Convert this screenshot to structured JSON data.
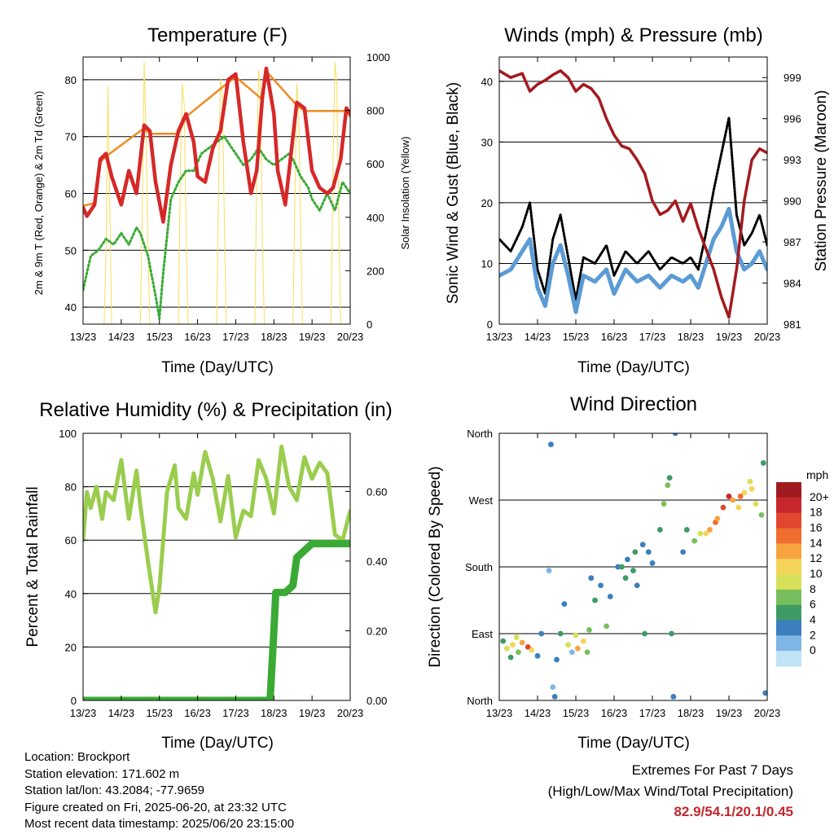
{
  "time_ticks": [
    "13/23",
    "14/23",
    "15/23",
    "16/23",
    "17/23",
    "18/23",
    "19/23",
    "20/23"
  ],
  "xlabel": "Time (Day/UTC)",
  "colors": {
    "temp_2m": "#d62828",
    "temp_9m": "#f08a24",
    "dewpoint": "#3aaa35",
    "solar": "#f7dd5b",
    "wind": "#5b9bd5",
    "gust": "#000000",
    "pressure": "#a31a1e",
    "rh": "#9acd4e",
    "precip": "#3aaa35"
  },
  "chart_data": [
    {
      "id": "temperature",
      "type": "line",
      "title": "Temperature (F)",
      "xlabel": "Time (Day/UTC)",
      "ylabel": "2m & 9m T (Red, Orange) & 2m Td (Green)",
      "y2label": "Solar Insolation (Yellow)",
      "ylim": [
        37,
        84
      ],
      "y2lim": [
        0,
        1000
      ],
      "yticks": [
        40,
        50,
        60,
        70,
        80
      ],
      "y2ticks": [
        0,
        200,
        400,
        600,
        800,
        1000
      ],
      "grid": true,
      "series": [
        {
          "key": "temp_2m",
          "axis": "y",
          "x": [
            0,
            0.1,
            0.3,
            0.45,
            0.6,
            0.75,
            1.0,
            1.2,
            1.4,
            1.6,
            1.75,
            1.9,
            2.1,
            2.3,
            2.5,
            2.7,
            2.9,
            3.0,
            3.2,
            3.4,
            3.6,
            3.8,
            4.0,
            4.2,
            4.4,
            4.55,
            4.7,
            4.8,
            5.0,
            5.1,
            5.3,
            5.5,
            5.6,
            5.8,
            6.0,
            6.2,
            6.4,
            6.55,
            6.75,
            6.9,
            7.0
          ],
          "y": [
            57.5,
            56,
            58,
            66,
            67,
            63,
            58,
            64,
            60,
            72,
            71,
            62,
            55,
            65,
            71,
            74,
            69,
            63,
            62,
            68,
            71,
            80,
            81,
            69,
            60,
            64,
            77,
            82,
            74,
            64,
            58,
            70,
            76,
            75,
            64,
            61,
            60,
            61,
            66,
            75,
            74
          ]
        },
        {
          "key": "temp_9m",
          "axis": "y",
          "x": [
            0,
            0.3,
            0.45,
            0.6,
            1.6,
            1.75,
            2.5,
            2.7,
            3.8,
            4.0,
            4.7,
            4.8,
            5.6,
            5.8,
            6.9,
            7.0
          ],
          "y": [
            57.8,
            58.3,
            65.5,
            66.5,
            71.5,
            70.5,
            70.5,
            73.5,
            79.5,
            80.5,
            76.5,
            81.5,
            75.5,
            74.5,
            74.5,
            73.5
          ]
        },
        {
          "key": "dewpoint",
          "axis": "y",
          "x": [
            0,
            0.2,
            0.4,
            0.6,
            0.8,
            1.0,
            1.2,
            1.4,
            1.5,
            1.7,
            1.9,
            2.0,
            2.1,
            2.3,
            2.5,
            2.7,
            2.9,
            3.1,
            3.3,
            3.5,
            3.7,
            3.9,
            4.0,
            4.2,
            4.4,
            4.6,
            4.8,
            5.0,
            5.2,
            5.4,
            5.5,
            5.7,
            5.9,
            6.0,
            6.2,
            6.4,
            6.6,
            6.8,
            7.0
          ],
          "y": [
            43,
            49,
            50,
            52,
            51,
            53,
            51,
            54,
            53,
            49,
            42,
            38,
            46,
            59,
            62,
            64,
            64,
            67,
            68,
            69,
            70,
            68,
            67,
            65,
            66,
            68,
            66,
            65,
            66,
            67,
            66,
            63,
            61,
            59,
            57,
            60,
            57,
            62,
            60
          ]
        },
        {
          "key": "solar",
          "axis": "y2",
          "x": [
            0,
            0.55,
            0.6,
            0.65,
            0.7,
            0.75,
            1.5,
            1.55,
            1.6,
            1.65,
            1.7,
            1.75,
            2.5,
            2.55,
            2.6,
            2.65,
            2.7,
            2.75,
            3.5,
            3.55,
            3.6,
            3.65,
            3.7,
            3.75,
            4.5,
            4.55,
            4.6,
            4.65,
            4.7,
            4.75,
            5.5,
            5.55,
            5.6,
            5.65,
            5.7,
            5.75,
            6.5,
            6.55,
            6.6,
            6.65,
            6.7,
            6.75,
            7.0
          ],
          "y": [
            0,
            0,
            250,
            890,
            450,
            0,
            0,
            400,
            980,
            720,
            300,
            0,
            0,
            600,
            900,
            820,
            350,
            0,
            0,
            500,
            920,
            860,
            400,
            0,
            0,
            550,
            950,
            880,
            300,
            0,
            0,
            480,
            900,
            800,
            350,
            0,
            0,
            600,
            980,
            900,
            400,
            0,
            0
          ]
        }
      ]
    },
    {
      "id": "winds",
      "type": "line",
      "title": "Winds (mph) & Pressure (mb)",
      "xlabel": "Time (Day/UTC)",
      "ylabel": "Sonic Wind & Gust (Blue, Black)",
      "y2label": "Station Pressure (Maroon)",
      "ylim": [
        0,
        44
      ],
      "y2lim": [
        981,
        1000.5
      ],
      "yticks": [
        0,
        10,
        20,
        30,
        40
      ],
      "y2ticks": [
        981,
        984,
        987,
        990,
        993,
        996,
        999
      ],
      "grid": true,
      "series": [
        {
          "key": "wind",
          "axis": "y",
          "x": [
            0,
            0.3,
            0.6,
            0.8,
            1.0,
            1.2,
            1.4,
            1.6,
            1.8,
            2.0,
            2.2,
            2.5,
            2.8,
            3.0,
            3.3,
            3.6,
            3.9,
            4.2,
            4.5,
            4.8,
            5.0,
            5.2,
            5.4,
            5.6,
            5.8,
            6.0,
            6.2,
            6.4,
            6.6,
            6.8,
            7.0
          ],
          "y": [
            8,
            9,
            12,
            14,
            6,
            3,
            10,
            13,
            8,
            2,
            8,
            7,
            9,
            5,
            9,
            7,
            8,
            6,
            8,
            7,
            8,
            6,
            10,
            14,
            16,
            19,
            12,
            9,
            10,
            12,
            9
          ]
        },
        {
          "key": "gust",
          "axis": "y",
          "x": [
            0,
            0.3,
            0.6,
            0.8,
            1.0,
            1.2,
            1.4,
            1.6,
            1.8,
            2.0,
            2.2,
            2.5,
            2.8,
            3.0,
            3.3,
            3.6,
            3.9,
            4.2,
            4.5,
            4.8,
            5.0,
            5.2,
            5.4,
            5.6,
            5.8,
            6.0,
            6.2,
            6.4,
            6.6,
            6.8,
            7.0
          ],
          "y": [
            14,
            12,
            16,
            20,
            9,
            5,
            14,
            18,
            11,
            4,
            11,
            10,
            13,
            8,
            12,
            10,
            12,
            9,
            11,
            10,
            11,
            9,
            15,
            22,
            28,
            34,
            18,
            13,
            15,
            18,
            13
          ]
        },
        {
          "key": "pressure",
          "axis": "y2",
          "x": [
            0,
            0.3,
            0.6,
            0.8,
            1.0,
            1.2,
            1.4,
            1.6,
            1.8,
            2.0,
            2.2,
            2.4,
            2.6,
            2.8,
            3.0,
            3.2,
            3.4,
            3.6,
            3.8,
            4.0,
            4.2,
            4.4,
            4.6,
            4.8,
            5.0,
            5.2,
            5.4,
            5.6,
            5.8,
            6.0,
            6.2,
            6.4,
            6.6,
            6.8,
            7.0
          ],
          "y": [
            999.5,
            999,
            999.3,
            998,
            998.5,
            998.8,
            999.2,
            999.5,
            999,
            998,
            998.5,
            998.2,
            997.5,
            996,
            994.8,
            994,
            993.8,
            993,
            992,
            990,
            989,
            989.3,
            990,
            988.5,
            989.8,
            988,
            986.5,
            985,
            983,
            981.5,
            985,
            990,
            993,
            993.8,
            993.5
          ]
        }
      ]
    },
    {
      "id": "humidity",
      "type": "line",
      "title": "Relative Humidity (%) & Precipitation (in)",
      "xlabel": "Time (Day/UTC)",
      "ylabel": "Percent & Total Rainfall",
      "ylim": [
        0,
        100
      ],
      "y2lim": [
        0,
        0.7667
      ],
      "yticks": [
        0,
        20,
        40,
        60,
        80,
        100
      ],
      "y2ticks": [
        "0.00",
        "0.20",
        "0.40",
        "0.60"
      ],
      "grid": true,
      "series": [
        {
          "key": "rh",
          "axis": "y",
          "x": [
            0,
            0.1,
            0.2,
            0.35,
            0.5,
            0.6,
            0.8,
            1.0,
            1.2,
            1.4,
            1.5,
            1.7,
            1.9,
            2.0,
            2.2,
            2.4,
            2.5,
            2.7,
            2.9,
            3.0,
            3.2,
            3.4,
            3.6,
            3.8,
            4.0,
            4.2,
            4.4,
            4.6,
            4.8,
            5.0,
            5.2,
            5.4,
            5.6,
            5.8,
            6.0,
            6.2,
            6.4,
            6.6,
            6.8,
            7.0
          ],
          "y": [
            60,
            78,
            72,
            80,
            68,
            78,
            75,
            90,
            68,
            86,
            73,
            52,
            33,
            42,
            78,
            88,
            72,
            68,
            85,
            77,
            93,
            83,
            67,
            84,
            61,
            71,
            69,
            90,
            83,
            70,
            95,
            80,
            75,
            91,
            83,
            89,
            85,
            62,
            60,
            71
          ]
        },
        {
          "key": "precip",
          "axis": "y2",
          "x": [
            0,
            4.9,
            5.0,
            5.05,
            5.1,
            5.3,
            5.5,
            5.6,
            5.8,
            6.0,
            6.2,
            7.0
          ],
          "y": [
            0,
            0,
            0.2,
            0.31,
            0.31,
            0.31,
            0.33,
            0.41,
            0.43,
            0.45,
            0.45,
            0.45
          ]
        }
      ]
    },
    {
      "id": "direction",
      "type": "scatter",
      "title": "Wind Direction",
      "xlabel": "Time (Day/UTC)",
      "ylabel": "Direction (Colored By Speed)",
      "ylim": [
        0,
        360
      ],
      "yticks": [
        "North",
        "East",
        "South",
        "West",
        "North"
      ],
      "grid": true,
      "colorbar": {
        "title": "mph",
        "labels": [
          "20+",
          "18",
          "16",
          "14",
          "12",
          "10",
          "8",
          "6",
          "4",
          "2",
          "0"
        ],
        "colors": [
          "#a01b1f",
          "#c8272d",
          "#e0472e",
          "#ef6e2f",
          "#f7a33f",
          "#f4d45a",
          "#d8e05a",
          "#79be5e",
          "#3e9b66",
          "#3b7fbf",
          "#7fb6e5",
          "#c0e3f5"
        ]
      },
      "points": [
        {
          "x": 0.1,
          "y": 80,
          "s": 5
        },
        {
          "x": 0.2,
          "y": 70,
          "s": 9
        },
        {
          "x": 0.35,
          "y": 75,
          "s": 12
        },
        {
          "x": 0.5,
          "y": 65,
          "s": 7
        },
        {
          "x": 0.6,
          "y": 78,
          "s": 14
        },
        {
          "x": 0.75,
          "y": 72,
          "s": 17
        },
        {
          "x": 0.85,
          "y": 68,
          "s": 11
        },
        {
          "x": 1.0,
          "y": 60,
          "s": 4
        },
        {
          "x": 1.1,
          "y": 90,
          "s": 3
        },
        {
          "x": 1.3,
          "y": 175,
          "s": 2
        },
        {
          "x": 1.35,
          "y": 345,
          "s": 3
        },
        {
          "x": 1.5,
          "y": 55,
          "s": 4
        },
        {
          "x": 1.6,
          "y": 90,
          "s": 6
        },
        {
          "x": 1.7,
          "y": 130,
          "s": 4
        },
        {
          "x": 1.8,
          "y": 75,
          "s": 9
        },
        {
          "x": 1.9,
          "y": 65,
          "s": 2
        },
        {
          "x": 2.05,
          "y": 70,
          "s": 14
        },
        {
          "x": 2.2,
          "y": 80,
          "s": 11
        },
        {
          "x": 2.3,
          "y": 65,
          "s": 8
        },
        {
          "x": 2.4,
          "y": 165,
          "s": 3
        },
        {
          "x": 2.5,
          "y": 135,
          "s": 5
        },
        {
          "x": 2.65,
          "y": 155,
          "s": 4
        },
        {
          "x": 2.8,
          "y": 100,
          "s": 7
        },
        {
          "x": 2.9,
          "y": 140,
          "s": 4
        },
        {
          "x": 3.1,
          "y": 180,
          "s": 4
        },
        {
          "x": 3.2,
          "y": 180,
          "s": 6
        },
        {
          "x": 3.35,
          "y": 190,
          "s": 4
        },
        {
          "x": 3.5,
          "y": 175,
          "s": 5
        },
        {
          "x": 3.6,
          "y": 155,
          "s": 4
        },
        {
          "x": 3.75,
          "y": 210,
          "s": 3
        },
        {
          "x": 3.8,
          "y": 90,
          "s": 6
        },
        {
          "x": 3.9,
          "y": 200,
          "s": 4
        },
        {
          "x": 4.0,
          "y": 185,
          "s": 3
        },
        {
          "x": 4.2,
          "y": 230,
          "s": 6
        },
        {
          "x": 4.3,
          "y": 265,
          "s": 8
        },
        {
          "x": 4.4,
          "y": 290,
          "s": 7
        },
        {
          "x": 4.45,
          "y": 300,
          "s": 6
        },
        {
          "x": 4.5,
          "y": 90,
          "s": 5
        },
        {
          "x": 4.55,
          "y": 5,
          "s": 4
        },
        {
          "x": 4.6,
          "y": 360,
          "s": 4
        },
        {
          "x": 4.8,
          "y": 200,
          "s": 4
        },
        {
          "x": 4.9,
          "y": 230,
          "s": 6
        },
        {
          "x": 5.1,
          "y": 215,
          "s": 7
        },
        {
          "x": 5.25,
          "y": 225,
          "s": 10
        },
        {
          "x": 5.4,
          "y": 225,
          "s": 12
        },
        {
          "x": 5.5,
          "y": 230,
          "s": 13
        },
        {
          "x": 5.65,
          "y": 240,
          "s": 15
        },
        {
          "x": 5.85,
          "y": 260,
          "s": 17
        },
        {
          "x": 6.0,
          "y": 275,
          "s": 19
        },
        {
          "x": 6.1,
          "y": 270,
          "s": 14
        },
        {
          "x": 6.25,
          "y": 260,
          "s": 12
        },
        {
          "x": 6.4,
          "y": 280,
          "s": 11
        },
        {
          "x": 6.55,
          "y": 295,
          "s": 10
        },
        {
          "x": 6.7,
          "y": 265,
          "s": 9
        },
        {
          "x": 6.85,
          "y": 250,
          "s": 8
        },
        {
          "x": 6.9,
          "y": 320,
          "s": 6
        },
        {
          "x": 6.95,
          "y": 10,
          "s": 3
        },
        {
          "x": 0.3,
          "y": 58,
          "s": 5
        },
        {
          "x": 0.45,
          "y": 85,
          "s": 10
        },
        {
          "x": 1.4,
          "y": 18,
          "s": 2
        },
        {
          "x": 1.45,
          "y": 5,
          "s": 3
        },
        {
          "x": 2.0,
          "y": 88,
          "s": 9
        },
        {
          "x": 2.35,
          "y": 95,
          "s": 7
        },
        {
          "x": 3.3,
          "y": 165,
          "s": 5
        },
        {
          "x": 3.55,
          "y": 200,
          "s": 6
        },
        {
          "x": 5.7,
          "y": 245,
          "s": 13
        },
        {
          "x": 6.3,
          "y": 275,
          "s": 16
        },
        {
          "x": 6.6,
          "y": 285,
          "s": 12
        }
      ]
    }
  ],
  "station": {
    "location": "Location: Brockport",
    "elevation": "Station elevation: 171.602 m",
    "latlon": "Station lat/lon: 43.2084; -77.9659",
    "created": "Figure created on Fri, 2025-06-20, at 23:32 UTC",
    "latest": "Most recent data timestamp: 2025/06/20 23:15:00"
  },
  "extremes": {
    "title": "Extremes For Past 7 Days",
    "subtitle": "(High/Low/Max Wind/Total Precipitation)",
    "values": "82.9/54.1/20.1/0.45"
  }
}
